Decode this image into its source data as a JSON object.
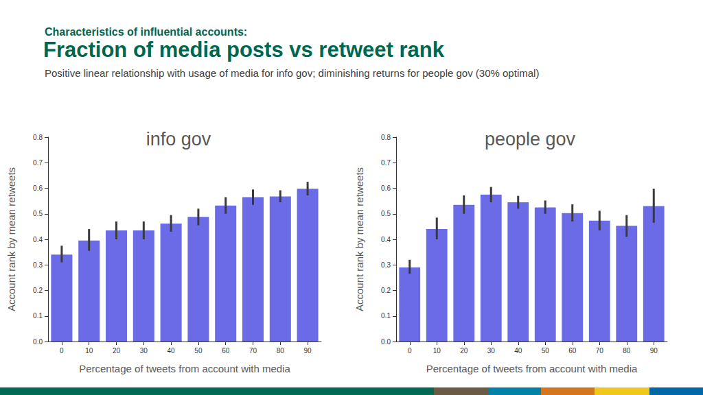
{
  "slide": {
    "kicker": "Characteristics of influential accounts:",
    "title": "Fraction of media posts vs retweet rank",
    "subtitle": "Positive linear relationship with usage of media for info gov; diminishing returns for people gov (30% optimal)"
  },
  "chart_data": [
    {
      "type": "bar",
      "title": "info gov",
      "x_label": "Percentage of tweets from account with media",
      "y_label": "Account rank by mean retweets",
      "categories": [
        "0",
        "10",
        "20",
        "30",
        "40",
        "50",
        "60",
        "70",
        "80",
        "90"
      ],
      "values": [
        0.34,
        0.395,
        0.435,
        0.435,
        0.462,
        0.488,
        0.532,
        0.565,
        0.568,
        0.598
      ],
      "ci_low": [
        0.31,
        0.355,
        0.4,
        0.4,
        0.43,
        0.455,
        0.5,
        0.535,
        0.545,
        0.572
      ],
      "ci_high": [
        0.375,
        0.44,
        0.47,
        0.47,
        0.495,
        0.52,
        0.565,
        0.595,
        0.592,
        0.625
      ],
      "color": "#6b6be8",
      "ylim": [
        0,
        0.8
      ],
      "yticks": [
        {
          "value": 0,
          "label": "0.0"
        },
        0.1,
        0.2,
        0.3,
        0.4,
        0.5,
        0.6,
        0.7,
        0.8
      ],
      "grid": false
    },
    {
      "type": "bar",
      "title": "people gov",
      "x_label": "Percentage of tweets from account with media",
      "y_label": "Account rank by mean retweets",
      "categories": [
        "0",
        "10",
        "20",
        "30",
        "40",
        "50",
        "60",
        "70",
        "80",
        "90"
      ],
      "values": [
        0.29,
        0.44,
        0.535,
        0.575,
        0.545,
        0.525,
        0.503,
        0.473,
        0.453,
        0.53
      ],
      "ci_low": [
        0.265,
        0.4,
        0.5,
        0.545,
        0.52,
        0.5,
        0.47,
        0.435,
        0.41,
        0.465
      ],
      "ci_high": [
        0.32,
        0.485,
        0.572,
        0.605,
        0.57,
        0.552,
        0.537,
        0.512,
        0.495,
        0.598
      ],
      "color": "#6b6be8",
      "ylim": [
        0,
        0.8
      ],
      "yticks": [
        {
          "value": 0,
          "label": "0.0"
        },
        0.1,
        0.2,
        0.3,
        0.4,
        0.5,
        0.6,
        0.7,
        0.8
      ],
      "grid": false
    }
  ]
}
